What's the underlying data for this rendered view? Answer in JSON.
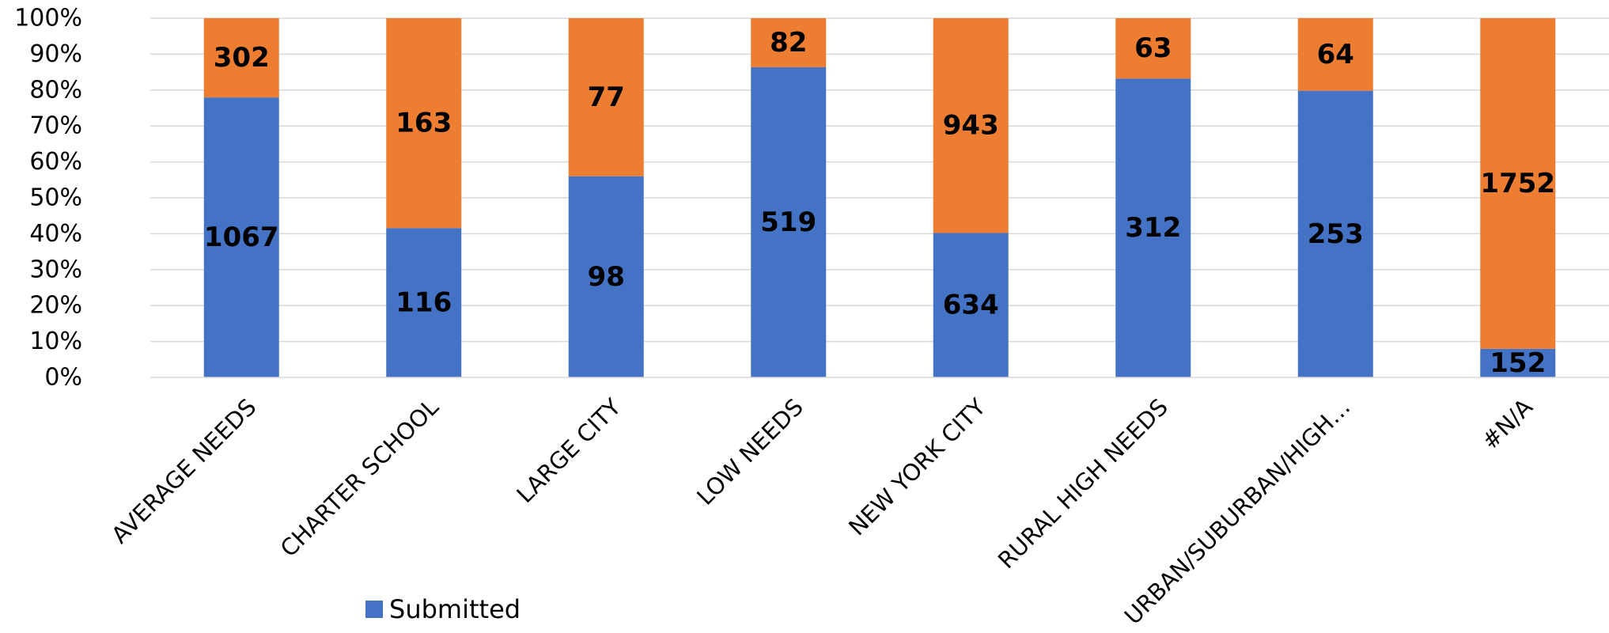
{
  "chart_data": {
    "type": "bar",
    "stacked": "percent",
    "title": "",
    "xlabel": "",
    "ylabel": "",
    "ylim": [
      0,
      100
    ],
    "y_ticks": [
      "0%",
      "10%",
      "20%",
      "30%",
      "40%",
      "50%",
      "60%",
      "70%",
      "80%",
      "90%",
      "100%"
    ],
    "grid": true,
    "legend_position": "bottom",
    "categories": [
      "AVERAGE NEEDS",
      "CHARTER SCHOOL",
      "LARGE CITY",
      "LOW NEEDS",
      "NEW YORK CITY",
      "RURAL HIGH NEEDS",
      "URBAN/SUBURBAN/HIGH…",
      "#N/A"
    ],
    "series": [
      {
        "name": "Submitted",
        "color": "#4472C4",
        "values": [
          1067,
          116,
          98,
          519,
          634,
          312,
          253,
          152
        ],
        "labels": [
          "1067",
          "116",
          "98",
          "519",
          "634",
          "312",
          "253",
          "152"
        ],
        "in_legend": true
      },
      {
        "color": "#ED7D31",
        "values": [
          302,
          163,
          77,
          82,
          943,
          63,
          64,
          1752
        ],
        "labels": [
          "302",
          "163",
          "77",
          "82",
          "943",
          "63",
          "64",
          "1752"
        ],
        "in_legend": false
      }
    ],
    "gridline_color": "#D9D9D9"
  }
}
